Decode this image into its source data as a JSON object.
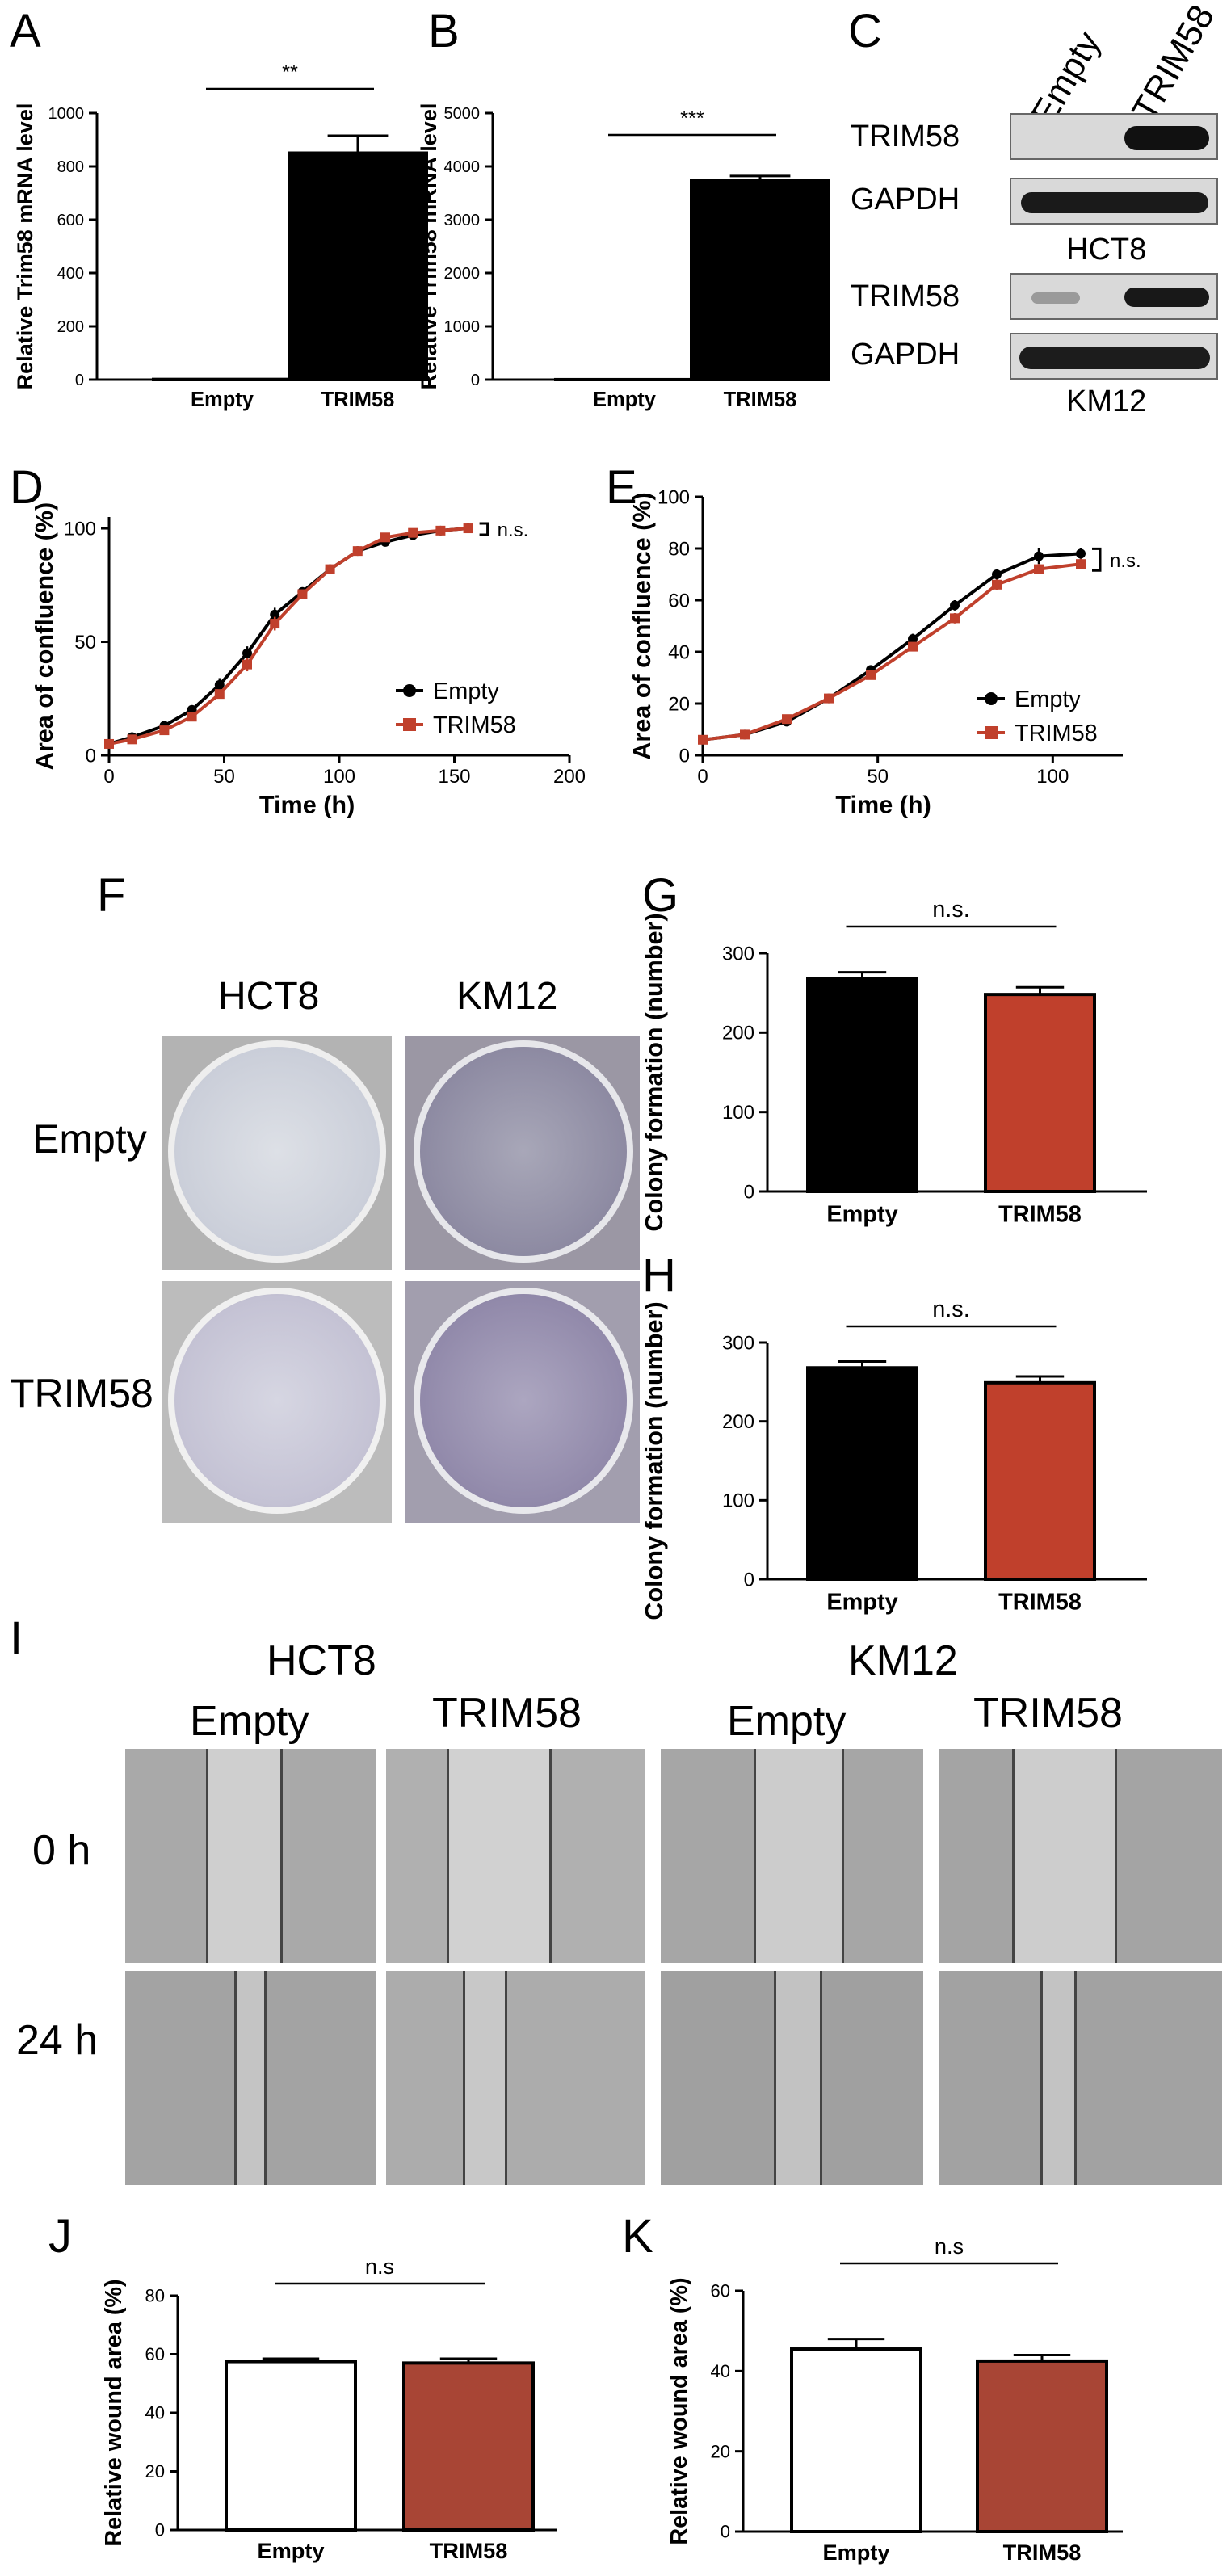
{
  "panel_labels": {
    "A": "A",
    "B": "B",
    "C": "C",
    "D": "D",
    "E": "E",
    "F": "F",
    "G": "G",
    "H": "H",
    "I": "I",
    "J": "J",
    "K": "K"
  },
  "colors": {
    "black_bar": "#000000",
    "red": "#c0402c",
    "empty_bar": "#ffffff",
    "dark_red_bar": "#a84535"
  },
  "western": {
    "lanes": [
      "Empty",
      "TRIM58"
    ],
    "blots": [
      {
        "cell_line": "HCT8",
        "rows": [
          "TRIM58",
          "GAPDH"
        ]
      },
      {
        "cell_line": "KM12",
        "rows": [
          "TRIM58",
          "GAPDH"
        ]
      }
    ]
  },
  "colony": {
    "cols": [
      "HCT8",
      "KM12"
    ],
    "rows": [
      "Empty",
      "TRIM58"
    ]
  },
  "wound": {
    "cell_lines": [
      "HCT8",
      "KM12"
    ],
    "conditions": [
      "Empty",
      "TRIM58",
      "Empty",
      "TRIM58"
    ],
    "times": [
      "0 h",
      "24 h"
    ]
  },
  "chart_data": [
    {
      "panel": "A",
      "type": "bar",
      "categories": [
        "Empty",
        "TRIM58"
      ],
      "values": [
        1,
        850
      ],
      "errors": [
        0,
        65
      ],
      "ylabel": "Relative Trim58 mRNA level",
      "ylim": [
        0,
        1000
      ],
      "yticks": [
        0,
        200,
        400,
        600,
        800,
        1000
      ],
      "significance": "**",
      "colors": [
        "#000000",
        "#000000"
      ]
    },
    {
      "panel": "B",
      "type": "bar",
      "categories": [
        "Empty",
        "TRIM58"
      ],
      "values": [
        1,
        3730
      ],
      "errors": [
        0,
        90
      ],
      "ylabel": "Relative Trim58 mRNA level",
      "ylim": [
        0,
        5000
      ],
      "yticks": [
        0,
        1000,
        2000,
        3000,
        4000,
        5000
      ],
      "significance": "***",
      "colors": [
        "#000000",
        "#000000"
      ]
    },
    {
      "panel": "D",
      "type": "line",
      "xlabel": "Time (h)",
      "ylabel": "Area of confluence (%)",
      "xlim": [
        0,
        200
      ],
      "ylim": [
        0,
        105
      ],
      "xticks": [
        0,
        50,
        100,
        150,
        200
      ],
      "yticks": [
        0,
        50,
        100
      ],
      "significance": "n.s.",
      "legend": "bottom-right",
      "series": [
        {
          "name": "Empty",
          "color": "#000000",
          "marker": "circle",
          "x": [
            0,
            10,
            24,
            36,
            48,
            60,
            72,
            84,
            96,
            108,
            120,
            132,
            144,
            156
          ],
          "y": [
            5,
            8,
            13,
            20,
            31,
            45,
            62,
            72,
            82,
            90,
            94,
            97,
            99,
            100
          ],
          "err": [
            1,
            1,
            2,
            2,
            3,
            3,
            3,
            2,
            2,
            2,
            1,
            1,
            1,
            1
          ]
        },
        {
          "name": "TRIM58",
          "color": "#c0402c",
          "marker": "square",
          "x": [
            0,
            10,
            24,
            36,
            48,
            60,
            72,
            84,
            96,
            108,
            120,
            132,
            144,
            156
          ],
          "y": [
            5,
            7,
            11,
            17,
            27,
            40,
            58,
            71,
            82,
            90,
            96,
            98,
            99,
            100
          ],
          "err": [
            1,
            1,
            1,
            2,
            2,
            3,
            3,
            2,
            2,
            1,
            1,
            1,
            1,
            1
          ]
        }
      ]
    },
    {
      "panel": "E",
      "type": "line",
      "xlabel": "Time (h)",
      "ylabel": "Area of confluence (%)",
      "xlim": [
        0,
        120
      ],
      "ylim": [
        0,
        100
      ],
      "xticks": [
        0,
        50,
        100
      ],
      "yticks": [
        0,
        20,
        40,
        60,
        80,
        100
      ],
      "significance": "n.s.",
      "legend": "bottom-right",
      "series": [
        {
          "name": "Empty",
          "color": "#000000",
          "marker": "circle",
          "x": [
            0,
            12,
            24,
            36,
            48,
            60,
            72,
            84,
            96,
            108
          ],
          "y": [
            6,
            8,
            13,
            22,
            33,
            45,
            58,
            70,
            77,
            78
          ],
          "err": [
            1,
            1,
            1,
            1,
            1,
            2,
            2,
            2,
            3,
            2
          ]
        },
        {
          "name": "TRIM58",
          "color": "#c0402c",
          "marker": "square",
          "x": [
            0,
            12,
            24,
            36,
            48,
            60,
            72,
            84,
            96,
            108
          ],
          "y": [
            6,
            8,
            14,
            22,
            31,
            42,
            53,
            66,
            72,
            74
          ],
          "err": [
            1,
            1,
            1,
            1,
            1,
            1,
            2,
            2,
            2,
            2
          ]
        }
      ]
    },
    {
      "panel": "G",
      "type": "bar",
      "categories": [
        "Empty",
        "TRIM58"
      ],
      "values": [
        268,
        248
      ],
      "errors": [
        8,
        9
      ],
      "ylabel": "Colony formation (number)",
      "ylim": [
        0,
        300
      ],
      "yticks": [
        0,
        100,
        200,
        300
      ],
      "significance": "n.s.",
      "colors": [
        "#000000",
        "#c0402c"
      ]
    },
    {
      "panel": "H",
      "type": "bar",
      "categories": [
        "Empty",
        "TRIM58"
      ],
      "values": [
        268,
        249
      ],
      "errors": [
        8,
        8
      ],
      "ylabel": "Colony formation (number)",
      "ylim": [
        0,
        300
      ],
      "yticks": [
        0,
        100,
        200,
        300
      ],
      "significance": "n.s.",
      "colors": [
        "#000000",
        "#c0402c"
      ]
    },
    {
      "panel": "J",
      "type": "bar",
      "categories": [
        "Empty",
        "TRIM58"
      ],
      "values": [
        57.5,
        57
      ],
      "errors": [
        1,
        1.5
      ],
      "ylabel": "Relative wound area (%)",
      "ylim": [
        0,
        80
      ],
      "yticks": [
        0,
        20,
        40,
        60,
        80
      ],
      "significance": "n.s",
      "colors": [
        "#ffffff",
        "#a84535"
      ]
    },
    {
      "panel": "K",
      "type": "bar",
      "categories": [
        "Empty",
        "TRIM58"
      ],
      "values": [
        45.5,
        42.5
      ],
      "errors": [
        2.5,
        1.5
      ],
      "ylabel": "Relative wound area (%)",
      "ylim": [
        0,
        60
      ],
      "yticks": [
        0,
        20,
        40,
        60
      ],
      "significance": "n.s",
      "colors": [
        "#ffffff",
        "#a84535"
      ]
    }
  ]
}
